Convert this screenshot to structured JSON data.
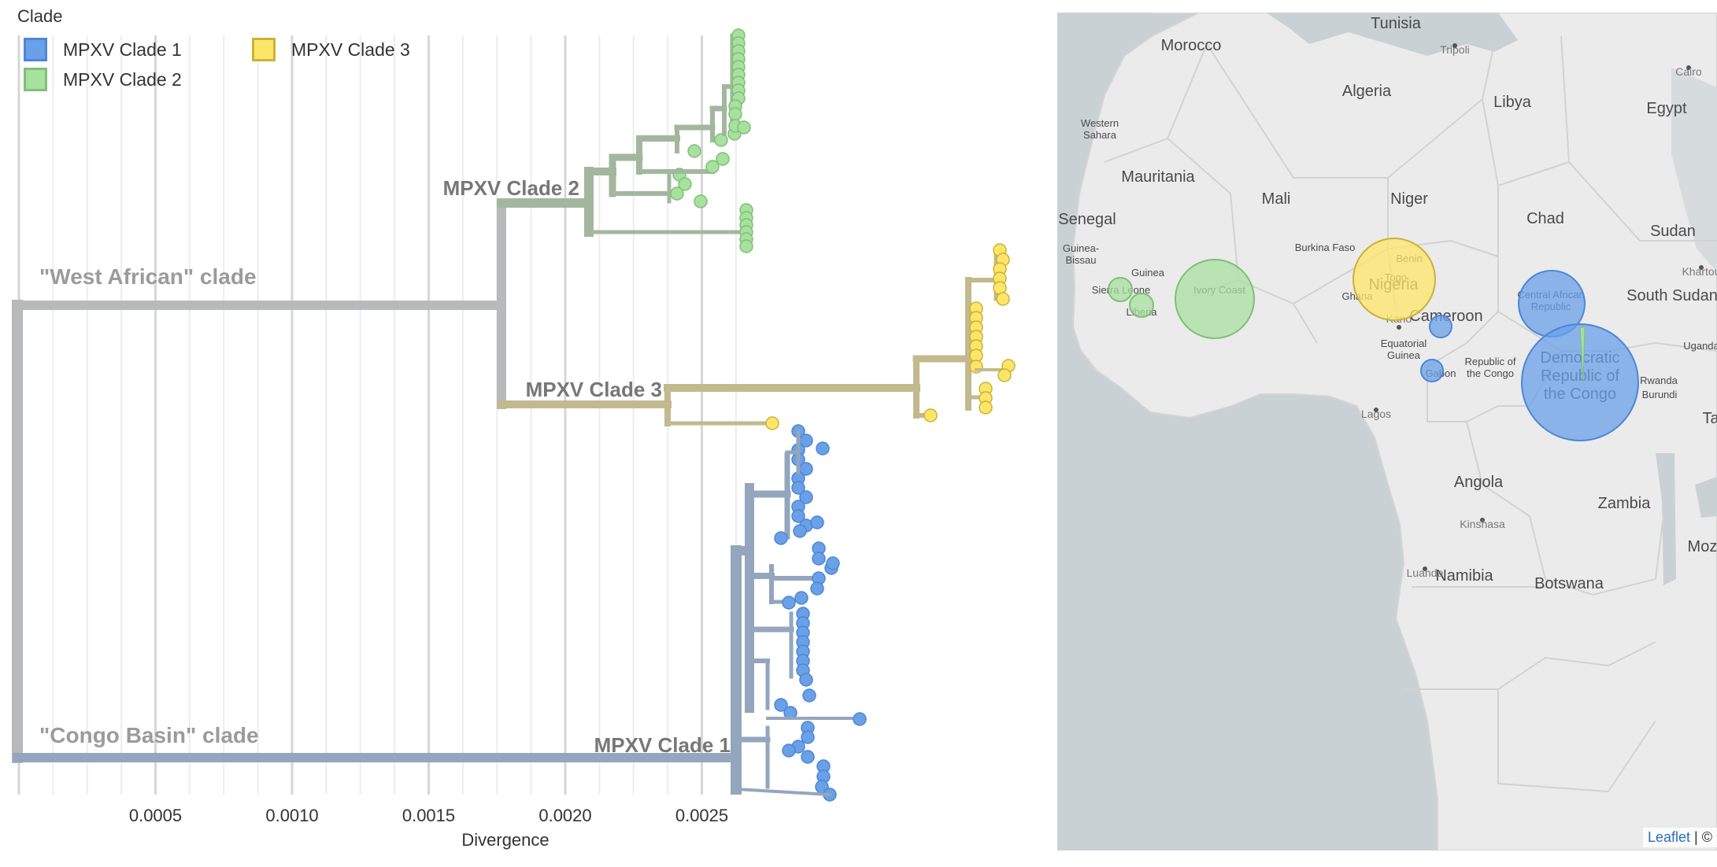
{
  "legend": {
    "title": "Clade",
    "items": [
      {
        "label": "MPXV Clade 1",
        "fill": "#6aa0e8",
        "stroke": "#4d86d6"
      },
      {
        "label": "MPXV Clade 2",
        "fill": "#a8e0a0",
        "stroke": "#7fbf76"
      },
      {
        "label": "MPXV Clade 3",
        "fill": "#fde56a",
        "stroke": "#c9b236"
      }
    ]
  },
  "tree": {
    "clade_labels": {
      "west_african": "\"West African\" clade",
      "congo_basin": "\"Congo Basin\" clade",
      "clade1": "MPXV Clade 1",
      "clade2": "MPXV Clade 2",
      "clade3": "MPXV Clade 3"
    },
    "branch_colors": {
      "root": "#b8b9ba",
      "clade1": "#93a6bd",
      "clade2": "#a3b79e",
      "clade3": "#c3b98e"
    },
    "axis": {
      "label": "Divergence",
      "ticks": [
        "0.0005",
        "0.0010",
        "0.0015",
        "0.0020",
        "0.0025"
      ],
      "tick_values": [
        0.0005,
        0.001,
        0.0015,
        0.002,
        0.0025
      ],
      "minor_values": [
        0.000125,
        0.00025,
        0.000375,
        0.000625,
        0.00075,
        0.000875,
        0.001125,
        0.00125,
        0.001375,
        0.001625,
        0.00175,
        0.001875,
        0.002125,
        0.00225,
        0.002375,
        0.002625
      ]
    }
  },
  "map": {
    "land_color": "#ebebeb",
    "sea_color": "#c9d1d4",
    "country_labels": [
      {
        "name": "Tunisia",
        "size": "l"
      },
      {
        "name": "Morocco",
        "size": "l"
      },
      {
        "name": "Algeria",
        "size": "l"
      },
      {
        "name": "Libya",
        "size": "l"
      },
      {
        "name": "Egypt",
        "size": "l"
      },
      {
        "name": "Western Sahara",
        "size": "s"
      },
      {
        "name": "Mauritania",
        "size": "l"
      },
      {
        "name": "Mali",
        "size": "l"
      },
      {
        "name": "Niger",
        "size": "l"
      },
      {
        "name": "Chad",
        "size": "l"
      },
      {
        "name": "Sudan",
        "size": "l"
      },
      {
        "name": "Senegal",
        "size": "l"
      },
      {
        "name": "Guinea-Bissau",
        "size": "s"
      },
      {
        "name": "Guinea",
        "size": "s"
      },
      {
        "name": "Burkina Faso",
        "size": "s"
      },
      {
        "name": "Benin",
        "size": "s"
      },
      {
        "name": "Togo",
        "size": "s"
      },
      {
        "name": "Ghana",
        "size": "s"
      },
      {
        "name": "Sierra Leone",
        "size": "s"
      },
      {
        "name": "Liberia",
        "size": "s"
      },
      {
        "name": "Ivory Coast",
        "size": "s"
      },
      {
        "name": "Nigeria",
        "size": "l"
      },
      {
        "name": "Cameroon",
        "size": "l"
      },
      {
        "name": "Central African Republic",
        "size": "s"
      },
      {
        "name": "South Sudan",
        "size": "l"
      },
      {
        "name": "Equatorial Guinea",
        "size": "s"
      },
      {
        "name": "Gabon",
        "size": "s"
      },
      {
        "name": "Republic of the Congo",
        "size": "s"
      },
      {
        "name": "Democratic Republic of the Congo",
        "size": "l"
      },
      {
        "name": "Uganda",
        "size": "s"
      },
      {
        "name": "Rwanda",
        "size": "s"
      },
      {
        "name": "Burundi",
        "size": "s"
      },
      {
        "name": "Angola",
        "size": "l"
      },
      {
        "name": "Zambia",
        "size": "l"
      },
      {
        "name": "Namibia",
        "size": "l"
      },
      {
        "name": "Botswana",
        "size": "l"
      },
      {
        "name": "Moza",
        "size": "l"
      },
      {
        "name": "Ta",
        "size": "l"
      }
    ],
    "city_labels": [
      "Tripoli",
      "Cairo",
      "Khartou",
      "Kano",
      "Lagos",
      "Kinshasa",
      "Luanda"
    ],
    "attribution": {
      "link": "Leaflet",
      "rest": "| ©"
    },
    "circles": [
      {
        "country": "Sierra Leone",
        "clade": "MPXV Clade 2"
      },
      {
        "country": "Liberia",
        "clade": "MPXV Clade 2"
      },
      {
        "country": "Ivory Coast",
        "clade": "MPXV Clade 2"
      },
      {
        "country": "Nigeria",
        "clade": "MPXV Clade 3"
      },
      {
        "country": "Cameroon",
        "clade": "MPXV Clade 1"
      },
      {
        "country": "Central African Republic",
        "clade": "MPXV Clade 1"
      },
      {
        "country": "Gabon",
        "clade": "MPXV Clade 1"
      },
      {
        "country": "Democratic Republic of the Congo",
        "clade": "MPXV Clade 1"
      }
    ]
  }
}
